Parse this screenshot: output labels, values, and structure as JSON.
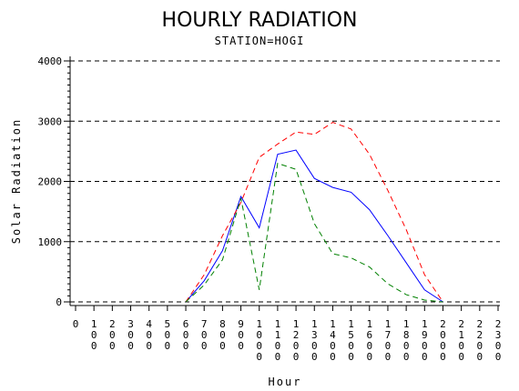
{
  "chart_data": {
    "type": "line",
    "title": "HOURLY RADIATION",
    "subtitle": "STATION=HOGI",
    "xlabel": "Hour",
    "ylabel": "Solar Radiation",
    "ylim": [
      0,
      4000
    ],
    "xlim": [
      0,
      2300
    ],
    "yticks": [
      0,
      1000,
      2000,
      3000,
      4000
    ],
    "xticks": [
      "0",
      "100",
      "200",
      "300",
      "400",
      "500",
      "600",
      "700",
      "800",
      "900",
      "1000",
      "1100",
      "1200",
      "1300",
      "1400",
      "1500",
      "1600",
      "1700",
      "1800",
      "1900",
      "2000",
      "2100",
      "2200",
      "2300"
    ],
    "grid": "horizontal-dashed",
    "series": [
      {
        "color": "#0000ff",
        "dash": "solid",
        "x": [
          600,
          700,
          800,
          900,
          1000,
          1100,
          1200,
          1300,
          1400,
          1500,
          1600,
          1700,
          1800,
          1900,
          2000
        ],
        "y": [
          0,
          350,
          850,
          1750,
          1230,
          2450,
          2520,
          2050,
          1900,
          1820,
          1530,
          1100,
          650,
          200,
          0
        ]
      },
      {
        "color": "#ff0000",
        "dash": "dashed",
        "x": [
          600,
          700,
          800,
          900,
          1000,
          1100,
          1200,
          1300,
          1400,
          1500,
          1600,
          1700,
          1800,
          1900,
          2000
        ],
        "y": [
          0,
          450,
          1100,
          1650,
          2400,
          2620,
          2820,
          2780,
          2980,
          2870,
          2450,
          1850,
          1200,
          450,
          0
        ]
      },
      {
        "color": "#008000",
        "dash": "dashed",
        "x": [
          600,
          700,
          800,
          900,
          1000,
          1100,
          1200,
          1300,
          1400,
          1500,
          1600,
          1700,
          1800,
          1900,
          2000
        ],
        "y": [
          0,
          280,
          700,
          1720,
          200,
          2300,
          2200,
          1300,
          800,
          730,
          580,
          300,
          120,
          30,
          0
        ]
      }
    ]
  }
}
